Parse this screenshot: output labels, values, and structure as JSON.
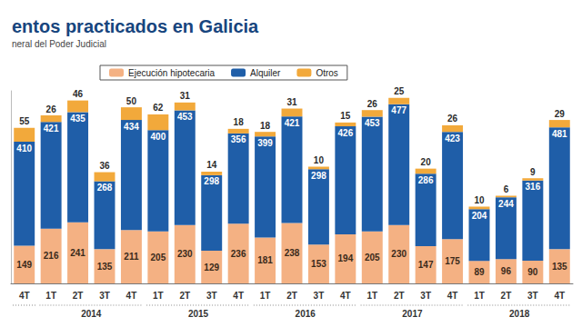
{
  "chart_data": {
    "type": "bar",
    "title": "entos practicados en Galicia",
    "subtitle": "neral del Poder Judicial",
    "categories": [
      "4T",
      "1T",
      "2T",
      "3T",
      "4T",
      "1T",
      "2T",
      "3T",
      "4T",
      "1T",
      "2T",
      "3T",
      "4T",
      "1T",
      "2T",
      "3T",
      "4T",
      "1T",
      "2T",
      "3T",
      "4T"
    ],
    "years": [
      null,
      "2014",
      "2014",
      "2014",
      "2014",
      "2015",
      "2015",
      "2015",
      "2015",
      "2016",
      "2016",
      "2016",
      "2016",
      "2017",
      "2017",
      "2017",
      "2017",
      "2018",
      "2018",
      "2018",
      "2018"
    ],
    "series": [
      {
        "name": "Ejecución hipotecaria",
        "color": "#f4b183",
        "values": [
          149,
          216,
          241,
          135,
          211,
          205,
          230,
          129,
          236,
          181,
          238,
          153,
          194,
          205,
          230,
          147,
          175,
          89,
          96,
          90,
          135
        ]
      },
      {
        "name": "Alquiler",
        "color": "#1f5ea8",
        "values": [
          410,
          421,
          435,
          268,
          434,
          400,
          453,
          298,
          356,
          399,
          421,
          298,
          426,
          453,
          477,
          286,
          423,
          204,
          244,
          316,
          481
        ]
      },
      {
        "name": "Otros",
        "color": "#f2a93b",
        "values": [
          55,
          26,
          46,
          36,
          50,
          62,
          31,
          14,
          18,
          18,
          31,
          10,
          15,
          26,
          25,
          20,
          26,
          10,
          6,
          9,
          29
        ]
      }
    ],
    "ylim": [
      0,
      760
    ],
    "yticks": [
      0
    ],
    "stacked": true,
    "data_labels": true,
    "legend": "top-left",
    "grid": false,
    "tick_labels": "x"
  }
}
